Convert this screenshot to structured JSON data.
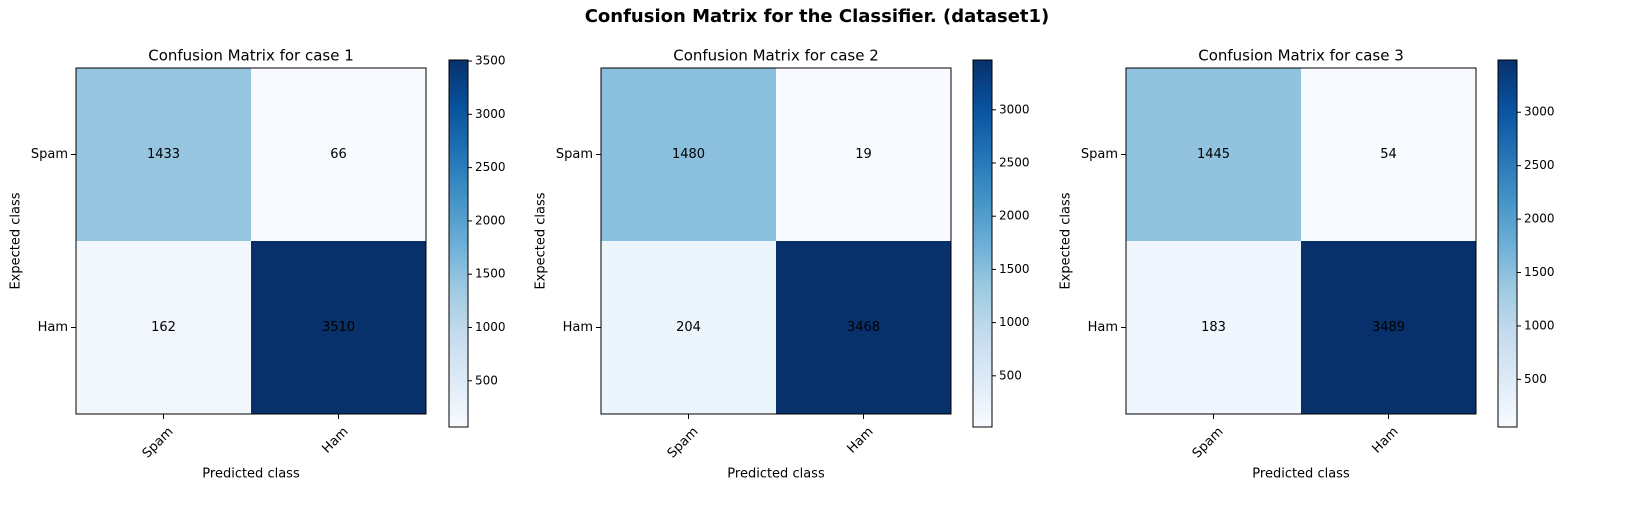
{
  "figure_title": "Confusion Matrix for the Classifier. (dataset1)",
  "chart_data": [
    {
      "type": "heatmap",
      "title": "Confusion Matrix for case 1",
      "xlabel": "Predicted class",
      "ylabel": "Expected class",
      "x_categories": [
        "Spam",
        "Ham"
      ],
      "y_categories": [
        "Spam",
        "Ham"
      ],
      "matrix": [
        [
          1433,
          66
        ],
        [
          162,
          3510
        ]
      ],
      "colormap": "Blues",
      "colorbar_range": [
        66,
        3510
      ],
      "colorbar_ticks": [
        500,
        1000,
        1500,
        2000,
        2500,
        3000,
        3500
      ]
    },
    {
      "type": "heatmap",
      "title": "Confusion Matrix for case 2",
      "xlabel": "Predicted class",
      "ylabel": "Expected class",
      "x_categories": [
        "Spam",
        "Ham"
      ],
      "y_categories": [
        "Spam",
        "Ham"
      ],
      "matrix": [
        [
          1480,
          19
        ],
        [
          204,
          3468
        ]
      ],
      "colormap": "Blues",
      "colorbar_range": [
        19,
        3468
      ],
      "colorbar_ticks": [
        500,
        1000,
        1500,
        2000,
        2500,
        3000
      ]
    },
    {
      "type": "heatmap",
      "title": "Confusion Matrix for case 3",
      "xlabel": "Predicted class",
      "ylabel": "Expected class",
      "x_categories": [
        "Spam",
        "Ham"
      ],
      "y_categories": [
        "Spam",
        "Ham"
      ],
      "matrix": [
        [
          1445,
          54
        ],
        [
          183,
          3489
        ]
      ],
      "colormap": "Blues",
      "colorbar_range": [
        54,
        3489
      ],
      "colorbar_ticks": [
        500,
        1000,
        1500,
        2000,
        2500,
        3000
      ]
    }
  ]
}
